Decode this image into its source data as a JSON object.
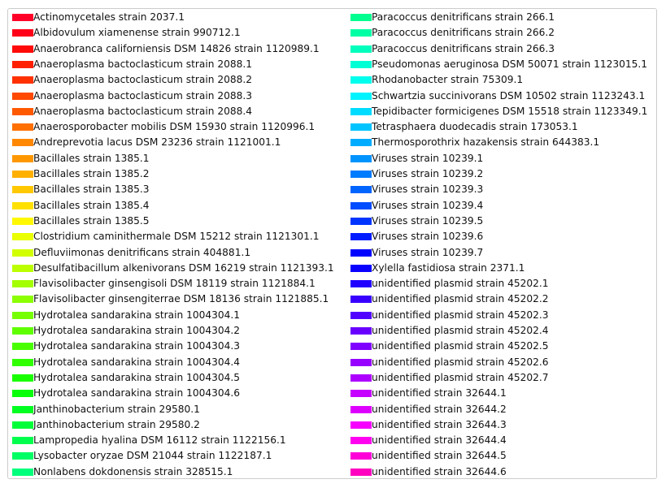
{
  "chart_data": {
    "type": "legend",
    "legend": {
      "placement": "center",
      "columns": 2,
      "entries": [
        {
          "label": "Actinomycetales strain 2037.1",
          "color": "#ff0029"
        },
        {
          "label": "Albidovulum xiamenense strain 990712.1",
          "color": "#ff0018"
        },
        {
          "label": "Anaerobranca californiensis DSM 14826 strain 1120989.1",
          "color": "#ff0a08"
        },
        {
          "label": "Anaeroplasma bactoclasticum strain 2088.1",
          "color": "#ff2000"
        },
        {
          "label": "Anaeroplasma bactoclasticum strain 2088.2",
          "color": "#ff3100"
        },
        {
          "label": "Anaeroplasma bactoclasticum strain 2088.3",
          "color": "#ff4800"
        },
        {
          "label": "Anaeroplasma bactoclasticum strain 2088.4",
          "color": "#ff5900"
        },
        {
          "label": "Anaerosporobacter mobilis DSM 15930 strain 1120996.1",
          "color": "#ff7000"
        },
        {
          "label": "Andreprevotia lacus DSM 23236 strain 1121001.1",
          "color": "#ff8800"
        },
        {
          "label": "Bacillales strain 1385.1",
          "color": "#ff9800"
        },
        {
          "label": "Bacillales strain 1385.2",
          "color": "#ffb000"
        },
        {
          "label": "Bacillales strain 1385.3",
          "color": "#ffc800"
        },
        {
          "label": "Bacillales strain 1385.4",
          "color": "#ffe000"
        },
        {
          "label": "Bacillales strain 1385.5",
          "color": "#fff800"
        },
        {
          "label": "Clostridium caminithermale DSM 15212 strain 1121301.1",
          "color": "#eaff00"
        },
        {
          "label": "Defluviimonas denitrificans strain 404881.1",
          "color": "#d2ff00"
        },
        {
          "label": "Desulfatibacillum alkenivorans DSM 16219 strain 1121393.1",
          "color": "#bcff00"
        },
        {
          "label": "Flavisolibacter ginsengisoli DSM 18119 strain 1121884.1",
          "color": "#a4ff00"
        },
        {
          "label": "Flavisolibacter ginsengiterrae DSM 18136 strain 1121885.1",
          "color": "#8cff00"
        },
        {
          "label": "Hydrotalea sandarakina strain 1004304.1",
          "color": "#76ff00"
        },
        {
          "label": "Hydrotalea sandarakina strain 1004304.2",
          "color": "#5fff00"
        },
        {
          "label": "Hydrotalea sandarakina strain 1004304.3",
          "color": "#48ff00"
        },
        {
          "label": "Hydrotalea sandarakina strain 1004304.4",
          "color": "#30ff00"
        },
        {
          "label": "Hydrotalea sandarakina strain 1004304.5",
          "color": "#1aff00"
        },
        {
          "label": "Hydrotalea sandarakina strain 1004304.6",
          "color": "#08ff0a"
        },
        {
          "label": "Janthinobacterium strain 29580.1",
          "color": "#00ff20"
        },
        {
          "label": "Janthinobacterium strain 29580.2",
          "color": "#00ff38"
        },
        {
          "label": "Lampropedia hyalina DSM 16112 strain 1122156.1",
          "color": "#00ff4c"
        },
        {
          "label": "Lysobacter oryzae DSM 21044 strain 1122187.1",
          "color": "#00ff64"
        },
        {
          "label": "Nonlabens dokdonensis strain 328515.1",
          "color": "#00ff7c"
        },
        {
          "label": "Paracoccus denitrificans strain 266.1",
          "color": "#00ff8e"
        },
        {
          "label": "Paracoccus denitrificans strain 266.2",
          "color": "#00ffa4"
        },
        {
          "label": "Paracoccus denitrificans strain 266.3",
          "color": "#00ffbc"
        },
        {
          "label": "Pseudomonas aeruginosa DSM 50071 strain 1123015.1",
          "color": "#00ffd4"
        },
        {
          "label": "Rhodanobacter strain 75309.1",
          "color": "#00ffec"
        },
        {
          "label": "Schwartzia succinivorans DSM 10502 strain 1123243.1",
          "color": "#00f4ff"
        },
        {
          "label": "Tepidibacter formicigenes DSM 15518 strain 1123349.1",
          "color": "#00dcff"
        },
        {
          "label": "Tetrasphaera duodecadis strain 173053.1",
          "color": "#00c4ff"
        },
        {
          "label": "Thermosporothrix hazakensis strain 644383.1",
          "color": "#00acff"
        },
        {
          "label": "Viruses strain 10239.1",
          "color": "#0094ff"
        },
        {
          "label": "Viruses strain 10239.2",
          "color": "#007cff"
        },
        {
          "label": "Viruses strain 10239.3",
          "color": "#0064ff"
        },
        {
          "label": "Viruses strain 10239.4",
          "color": "#004cff"
        },
        {
          "label": "Viruses strain 10239.5",
          "color": "#0034ff"
        },
        {
          "label": "Viruses strain 10239.6",
          "color": "#001cff"
        },
        {
          "label": "Viruses strain 10239.7",
          "color": "#0004ff"
        },
        {
          "label": "Xylella fastidiosa strain 2371.1",
          "color": "#0a00ff"
        },
        {
          "label": "unidentified plasmid strain 45202.1",
          "color": "#2000ff"
        },
        {
          "label": "unidentified plasmid strain 45202.2",
          "color": "#3800ff"
        },
        {
          "label": "unidentified plasmid strain 45202.3",
          "color": "#5000ff"
        },
        {
          "label": "unidentified plasmid strain 45202.4",
          "color": "#6800ff"
        },
        {
          "label": "unidentified plasmid strain 45202.5",
          "color": "#8000ff"
        },
        {
          "label": "unidentified plasmid strain 45202.6",
          "color": "#9600ff"
        },
        {
          "label": "unidentified plasmid strain 45202.7",
          "color": "#ae00ff"
        },
        {
          "label": "unidentified strain 32644.1",
          "color": "#c600ff"
        },
        {
          "label": "unidentified strain 32644.2",
          "color": "#de00ff"
        },
        {
          "label": "unidentified strain 32644.3",
          "color": "#f600ff"
        },
        {
          "label": "unidentified strain 32644.4",
          "color": "#ff00f0"
        },
        {
          "label": "unidentified strain 32644.5",
          "color": "#ff00d8"
        },
        {
          "label": "unidentified strain 32644.6",
          "color": "#ff00c0"
        }
      ]
    }
  }
}
